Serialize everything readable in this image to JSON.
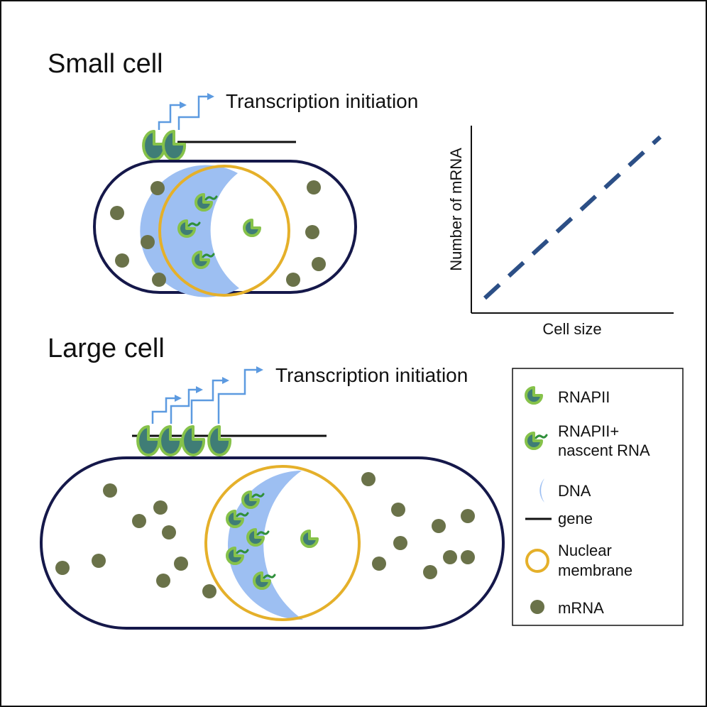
{
  "small_cell": {
    "title": "Small cell",
    "arrow_label": "Transcription initiation"
  },
  "large_cell": {
    "title": "Large cell",
    "arrow_label": "Transcription initiation"
  },
  "plot": {
    "xlabel": "Cell size",
    "ylabel": "Number of mRNA"
  },
  "legend": {
    "items": [
      {
        "icon": "rnapii-icon",
        "label": "RNAPII"
      },
      {
        "icon": "rnapii-nascent-rna-icon",
        "label": "RNAPII+\nnascent RNA"
      },
      {
        "icon": "dna-icon",
        "label": "DNA"
      },
      {
        "icon": "gene-line-icon",
        "label": "gene"
      },
      {
        "icon": "nuclear-membrane-icon",
        "label": "Nuclear\nmembrane"
      },
      {
        "icon": "mrna-dot-icon",
        "label": "mRNA"
      }
    ]
  },
  "colors": {
    "cell_outline": "#15184a",
    "nucleus": "#e5b02a",
    "dna": "#9dbff2",
    "rnapii_fill": "#3f7d76",
    "rnapii_outline": "#86c24a",
    "mrna": "#6a7249",
    "arrow": "#5c9ae0",
    "dashed_line": "#2c4f86"
  }
}
